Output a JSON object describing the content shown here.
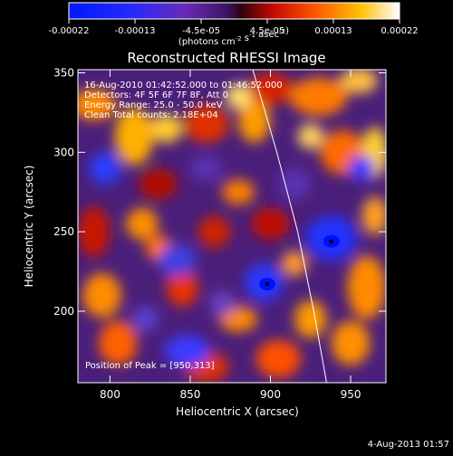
{
  "chart_data": {
    "type": "heatmap",
    "title": "Reconstructed RHESSI Image",
    "xlabel": "Heliocentric X (arcsec)",
    "ylabel": "Heliocentric Y (arcsec)",
    "xlim": [
      780,
      972
    ],
    "ylim": [
      155,
      352
    ],
    "x_ticks": [
      800,
      850,
      900,
      950
    ],
    "y_ticks": [
      200,
      250,
      300,
      350
    ],
    "colorbar": {
      "ticks": [
        "-0.00022",
        "-0.00013",
        "-4.5e-05",
        "4.5e-05",
        "0.00013",
        "0.00022"
      ],
      "range": [
        -0.00022,
        0.00022
      ],
      "units_main": "(photons cm",
      "units_exp1": "-2",
      "units_mid": " s",
      "units_exp2": "-1",
      "units_end": " asec",
      "units_exp3": "-2",
      "units_close": ")"
    },
    "annotations": [
      "16-Aug-2010 01:42:52.000 to 01:46:52.000",
      "Detectors: 4F 5F 6F 7F 8F, Att 0",
      "Energy Range: 25.0 - 50.0 keV",
      "Clean     Total counts: 2.18E+04"
    ],
    "peak_text": "Position of Peak = [950,313]",
    "peaks_marked": [
      [
        898,
        217
      ],
      [
        938,
        244
      ]
    ],
    "limb_arc": [
      [
        889,
        352
      ],
      [
        904,
        300
      ],
      [
        917,
        250
      ],
      [
        927,
        200
      ],
      [
        935,
        155
      ]
    ],
    "colormap": "blue-purple-red-yellow-white",
    "grid": false
  },
  "footer_date": "4-Aug-2013 01:57"
}
